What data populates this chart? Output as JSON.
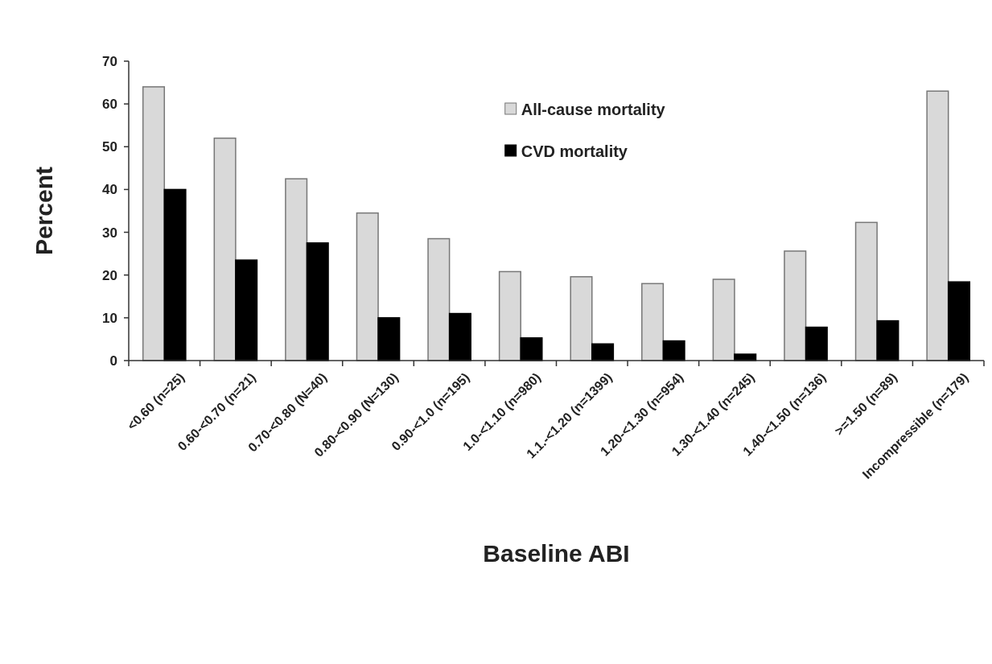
{
  "chart_data": {
    "type": "bar",
    "xlabel": "Baseline ABI",
    "ylabel": "Percent",
    "categories": [
      "<0.60 (n=25)",
      "0.60-<0.70 (n=21)",
      "0.70-<0.80 (N=40)",
      "0.80-<0.90 (N=130)",
      "0.90-<1.0 (n=195)",
      "1.0-<1.10 (n=980)",
      "1.1.-<1.20 (n=1399)",
      "1.20-<1.30 (n=954)",
      "1.30-<1.40 (n=245)",
      "1.40-<1.50 (n=136)",
      ">=1.50 (n=89)",
      "Incompressible (n=179)"
    ],
    "series": [
      {
        "name": "All-cause mortality",
        "color": "#d9d9d9",
        "values": [
          64,
          52,
          42.5,
          34.5,
          28.5,
          20.8,
          19.6,
          18,
          19,
          25.6,
          32.3,
          63
        ]
      },
      {
        "name": "CVD mortality",
        "color": "#000000",
        "values": [
          40,
          23.5,
          27.5,
          10,
          11,
          5.3,
          3.9,
          4.6,
          1.5,
          7.8,
          9.3,
          18.4
        ]
      }
    ],
    "ylim": [
      0,
      70
    ],
    "yticks": [
      0,
      10,
      20,
      30,
      40,
      50,
      60,
      70
    ],
    "legend": "top right"
  }
}
